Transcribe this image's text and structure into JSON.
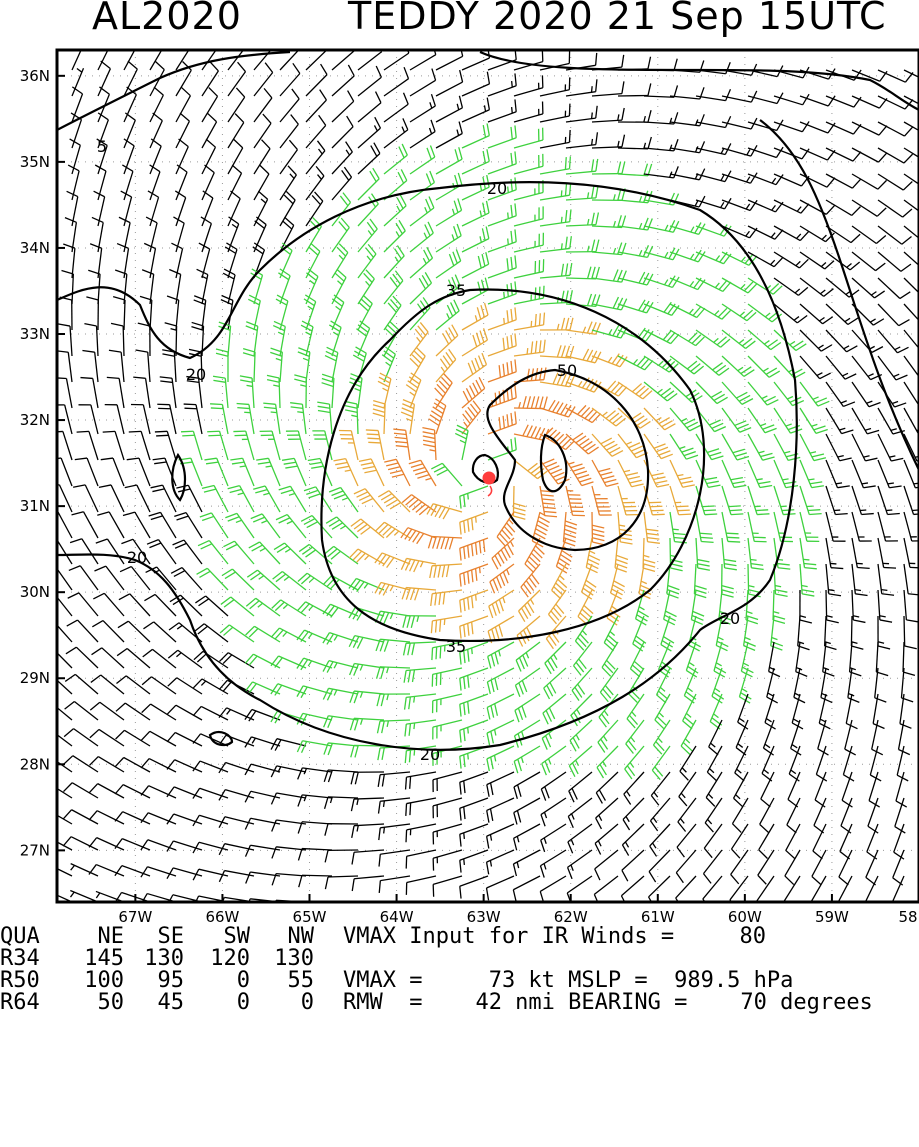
{
  "header": {
    "storm_id": "AL2020",
    "storm_info": "TEDDY 2020 21 Sep 15UTC"
  },
  "chart_data": {
    "type": "wind_barb_map",
    "title": "AL2020   TEDDY 2020 21 Sep 15UTC",
    "x_ticks": [
      "67W",
      "66W",
      "65W",
      "64W",
      "63W",
      "62W",
      "61W",
      "60W",
      "59W",
      "58"
    ],
    "x_values": [
      -67,
      -66,
      -65,
      -64,
      -63,
      -62,
      -61,
      -60,
      -59,
      -58
    ],
    "y_ticks": [
      "36N",
      "35N",
      "34N",
      "33N",
      "32N",
      "31N",
      "30N",
      "29N",
      "28N",
      "27N"
    ],
    "y_values": [
      36,
      35,
      34,
      33,
      32,
      31,
      30,
      29,
      28,
      27
    ],
    "lon_range": [
      -67.9,
      -58.0
    ],
    "lat_range": [
      26.4,
      36.3
    ],
    "center": {
      "lon": -62.95,
      "lat": 31.35
    },
    "contour_labels": [
      "5",
      "20",
      "20",
      "20",
      "20",
      "20",
      "35",
      "35",
      "50"
    ],
    "vmax_input_kt": 80,
    "series_colors": {
      "lt20": "#000000",
      "20to35": "#3ed13e",
      "35to50": "#e8a93a",
      "ge50": "#e8812e",
      "center": "#ff3c3c"
    }
  },
  "info": {
    "header_row": [
      "QUA",
      "NE",
      "SE",
      "SW",
      "NW"
    ],
    "vmax_label": "VMAX Input for IR Winds =",
    "vmax_value": "80",
    "rows": [
      {
        "label": "R34",
        "values": [
          "145",
          "130",
          "120",
          "130"
        ]
      },
      {
        "label": "R50",
        "values": [
          "100",
          "95",
          "0",
          "55"
        ]
      },
      {
        "label": "R64",
        "values": [
          "50",
          "45",
          "0",
          "0"
        ]
      }
    ],
    "r50_extra": "VMAX =     73 kt MSLP =  989.5 hPa",
    "r64_extra": "RMW  =    42 nmi BEARING =    70 degrees"
  }
}
